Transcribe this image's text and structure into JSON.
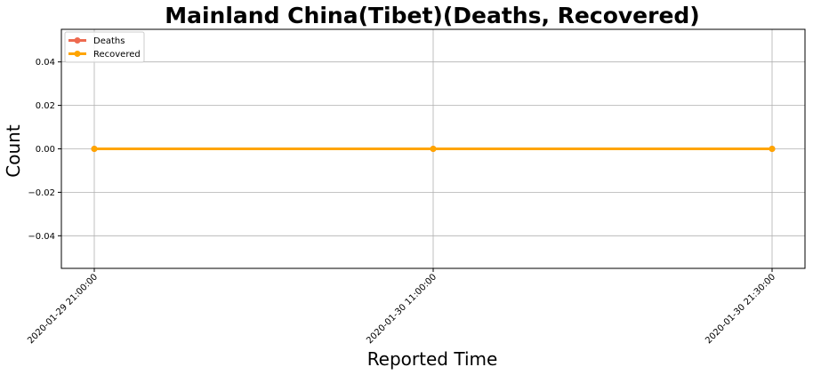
{
  "chart_data": {
    "type": "line",
    "title": "Mainland China(Tibet)(Deaths, Recovered)",
    "xlabel": "Reported Time",
    "ylabel": "Count",
    "categories": [
      "2020-01-29 21:00:00",
      "2020-01-30 11:00:00",
      "2020-01-30 21:30:00"
    ],
    "series": [
      {
        "name": "Deaths",
        "color": "#ee6a50",
        "values": [
          0,
          0,
          0
        ]
      },
      {
        "name": "Recovered",
        "color": "#ffa500",
        "values": [
          0,
          0,
          0
        ]
      }
    ],
    "ylim": [
      -0.055,
      0.055
    ],
    "yticks": [
      -0.04,
      -0.02,
      0.0,
      0.02,
      0.04
    ],
    "ytick_labels": [
      "−0.04",
      "−0.02",
      "0.00",
      "0.02",
      "0.04"
    ],
    "grid": true,
    "legend_position": "top-left",
    "marker": "circle"
  }
}
